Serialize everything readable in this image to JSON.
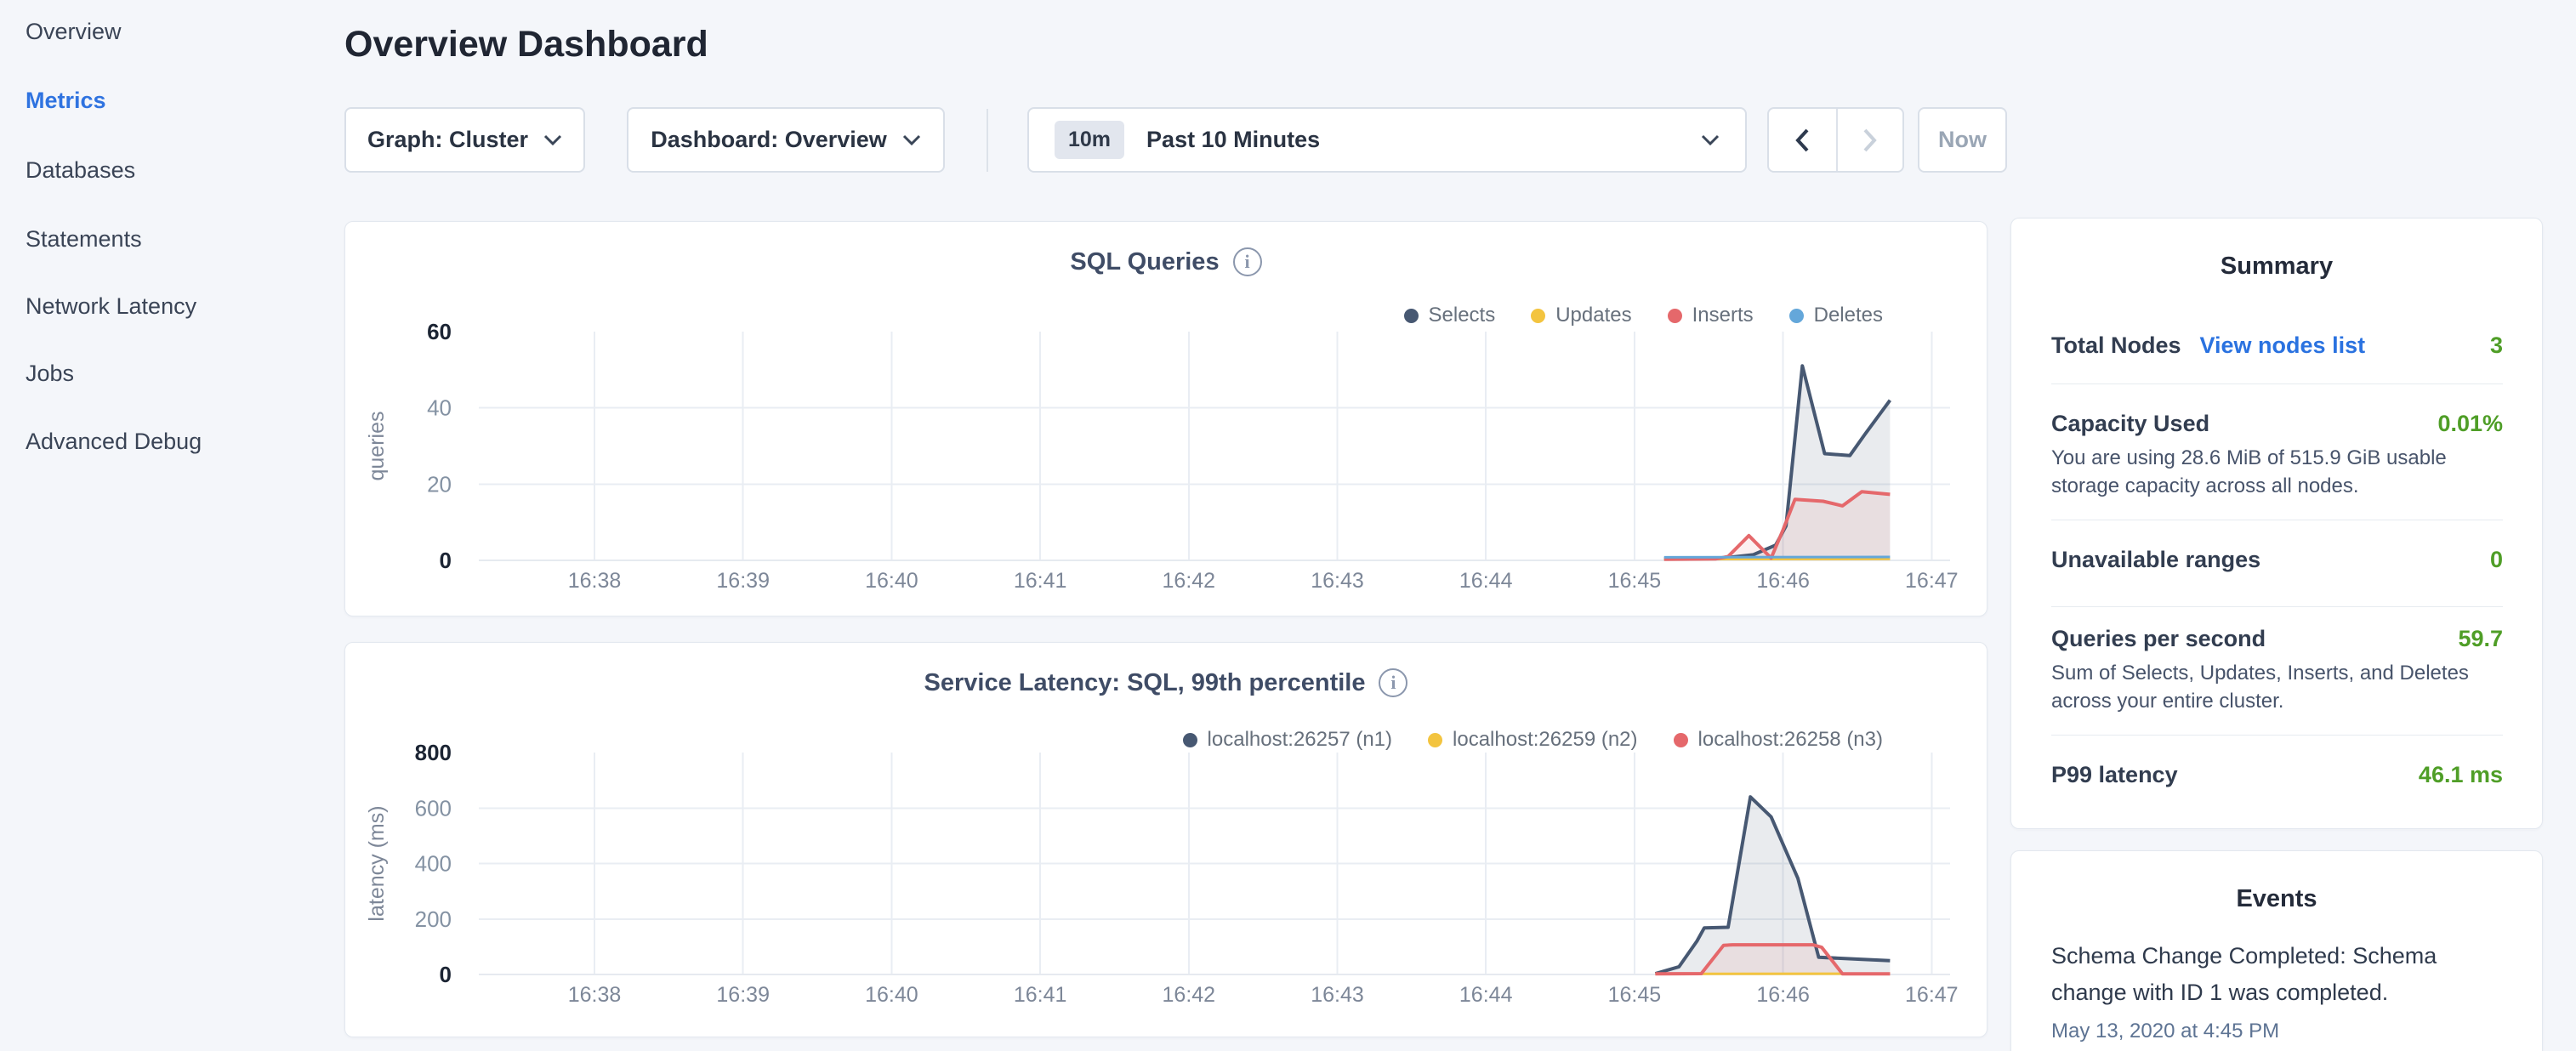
{
  "sidebar": {
    "items": [
      {
        "label": "Overview",
        "active": false
      },
      {
        "label": "Metrics",
        "active": true
      },
      {
        "label": "Databases",
        "active": false
      },
      {
        "label": "Statements",
        "active": false
      },
      {
        "label": "Network Latency",
        "active": false
      },
      {
        "label": "Jobs",
        "active": false
      },
      {
        "label": "Advanced Debug",
        "active": false
      }
    ]
  },
  "header": {
    "title": "Overview Dashboard"
  },
  "toolbar": {
    "graph_dropdown": "Graph: Cluster",
    "dashboard_dropdown": "Dashboard: Overview",
    "time_badge": "10m",
    "time_label": "Past 10 Minutes",
    "now_label": "Now"
  },
  "chart_data": [
    {
      "type": "area",
      "title": "SQL Queries",
      "ylabel": "queries",
      "ylim": [
        0,
        60
      ],
      "y_ticks": [
        0,
        20,
        40,
        60
      ],
      "x_tick_labels": [
        "16:38",
        "16:39",
        "16:40",
        "16:41",
        "16:42",
        "16:43",
        "16:44",
        "16:45",
        "16:46",
        "16:47"
      ],
      "grid": true,
      "legend_position": "top-right",
      "series": [
        {
          "name": "Selects",
          "color": "#475872",
          "fill": "rgba(71,88,114,0.12)",
          "width": 4,
          "points": [
            [
              7.2,
              0.5
            ],
            [
              7.45,
              0.5
            ],
            [
              7.62,
              0.7
            ],
            [
              7.8,
              1.5
            ],
            [
              7.95,
              4
            ],
            [
              8.02,
              9
            ],
            [
              8.13,
              51
            ],
            [
              8.28,
              28
            ],
            [
              8.45,
              27.5
            ],
            [
              8.55,
              33
            ],
            [
              8.72,
              42
            ]
          ]
        },
        {
          "name": "Updates",
          "color": "#f3c43f",
          "fill": null,
          "width": 3,
          "points": [
            [
              7.2,
              0.3
            ],
            [
              8.72,
              0.4
            ]
          ]
        },
        {
          "name": "Inserts",
          "color": "#e5686b",
          "fill": "rgba(229,104,107,0.10)",
          "width": 4,
          "points": [
            [
              7.2,
              0.3
            ],
            [
              7.55,
              0.4
            ],
            [
              7.63,
              1
            ],
            [
              7.77,
              6.5
            ],
            [
              7.92,
              0.6
            ],
            [
              8.0,
              8
            ],
            [
              8.08,
              16
            ],
            [
              8.27,
              15.5
            ],
            [
              8.4,
              14.3
            ],
            [
              8.53,
              18
            ],
            [
              8.72,
              17.3
            ]
          ]
        },
        {
          "name": "Deletes",
          "color": "#64a7da",
          "fill": null,
          "width": 3,
          "points": [
            [
              7.2,
              0.8
            ],
            [
              8.72,
              0.9
            ]
          ]
        }
      ]
    },
    {
      "type": "area",
      "title": "Service Latency: SQL, 99th percentile",
      "ylabel": "latency (ms)",
      "ylim": [
        0,
        800
      ],
      "y_ticks": [
        0,
        200,
        400,
        600,
        800
      ],
      "x_tick_labels": [
        "16:38",
        "16:39",
        "16:40",
        "16:41",
        "16:42",
        "16:43",
        "16:44",
        "16:45",
        "16:46",
        "16:47"
      ],
      "grid": true,
      "legend_position": "top-right",
      "series": [
        {
          "name": "localhost:26257 (n1)",
          "color": "#475872",
          "fill": "rgba(71,88,114,0.12)",
          "width": 4,
          "points": [
            [
              7.14,
              3
            ],
            [
              7.3,
              28
            ],
            [
              7.42,
              120
            ],
            [
              7.47,
              168
            ],
            [
              7.63,
              170
            ],
            [
              7.78,
              640
            ],
            [
              7.92,
              568
            ],
            [
              8.1,
              346
            ],
            [
              8.24,
              62
            ],
            [
              8.52,
              55
            ],
            [
              8.72,
              50
            ]
          ]
        },
        {
          "name": "localhost:26259 (n2)",
          "color": "#f3c43f",
          "fill": null,
          "width": 3,
          "points": [
            [
              7.14,
              2
            ],
            [
              8.72,
              3
            ]
          ]
        },
        {
          "name": "localhost:26258 (n3)",
          "color": "#e5686b",
          "fill": "rgba(229,104,107,0.10)",
          "width": 4,
          "points": [
            [
              7.14,
              2
            ],
            [
              7.45,
              3
            ],
            [
              7.6,
              105
            ],
            [
              7.66,
              107
            ],
            [
              8.2,
              107
            ],
            [
              8.26,
              98
            ],
            [
              8.4,
              2
            ],
            [
              8.72,
              2
            ]
          ]
        }
      ]
    }
  ],
  "summary": {
    "title": "Summary",
    "total_nodes_label": "Total Nodes",
    "total_nodes_link": "View nodes list",
    "total_nodes_value": "3",
    "capacity_label": "Capacity Used",
    "capacity_value": "0.01%",
    "capacity_desc": "You are using 28.6 MiB of 515.9 GiB usable storage capacity across all nodes.",
    "unavailable_label": "Unavailable ranges",
    "unavailable_value": "0",
    "qps_label": "Queries per second",
    "qps_value": "59.7",
    "qps_desc": "Sum of Selects, Updates, Inserts, and Deletes across your entire cluster.",
    "p99_label": "P99 latency",
    "p99_value": "46.1 ms"
  },
  "events": {
    "title": "Events",
    "items": [
      {
        "text": "Schema Change Completed: Schema change with ID 1 was completed.",
        "timestamp": "May 13, 2020 at 4:45 PM"
      }
    ]
  }
}
